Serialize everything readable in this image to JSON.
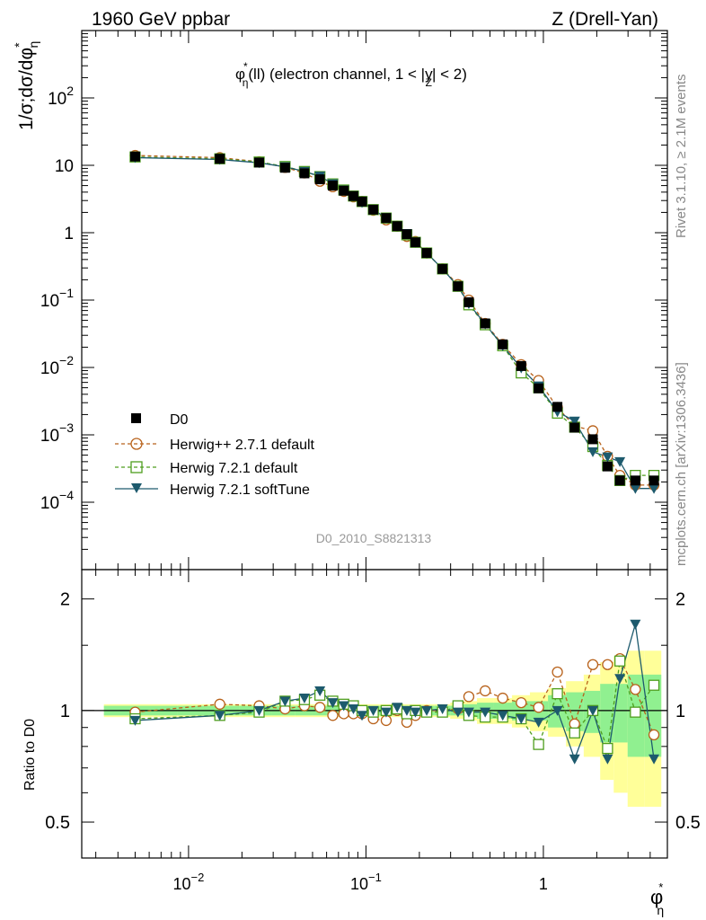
{
  "header": {
    "left": "1960 GeV ppbar",
    "right": "Z (Drell-Yan)"
  },
  "side_labels": {
    "rivet": "Rivet 3.1.10, ≥ 2.1M events",
    "mcplots": "mcplots.cern.ch [arXiv:1306.3436]"
  },
  "main_plot": {
    "title_phi": "φ",
    "title_star": "*",
    "title_eta": "η",
    "title_rest": "(ll) (electron channel, 1 < |y",
    "title_Z": "Z",
    "title_end": "| < 2)",
    "ylabel": "1/σ;dσ/dφ",
    "ylabel_star": "*",
    "ylabel_eta": "η",
    "y_ticks": [
      {
        "label": "10",
        "exp": "2"
      },
      {
        "label": "10",
        "exp": ""
      },
      {
        "label": "1",
        "exp": ""
      },
      {
        "label": "10",
        "exp": "−1"
      },
      {
        "label": "10",
        "exp": "−2"
      },
      {
        "label": "10",
        "exp": "−3"
      },
      {
        "label": "10",
        "exp": "−4"
      }
    ],
    "watermark": "D0_2010_S8821313"
  },
  "ratio_plot": {
    "ylabel": "Ratio to D0",
    "y_ticks": [
      "2",
      "1",
      "0.5"
    ]
  },
  "x_axis": {
    "label_phi": "φ",
    "label_star": "*",
    "label_eta": "η",
    "ticks": [
      {
        "label": "10",
        "exp": "−2"
      },
      {
        "label": "10",
        "exp": "−1"
      },
      {
        "label": "1",
        "exp": ""
      }
    ]
  },
  "legend": [
    {
      "label": "D0"
    },
    {
      "label": "Herwig++ 2.7.1 default"
    },
    {
      "label": "Herwig 7.2.1 default"
    },
    {
      "label": "Herwig 7.2.1 softTune"
    }
  ],
  "colors": {
    "data": "#000000",
    "herwigpp": "#b8621b",
    "herwig_default": "#4f9e1e",
    "herwig_soft": "#1d5a6d",
    "band_inner": "#90f090",
    "band_outer": "#ffff99"
  },
  "chart_data": {
    "type": "line",
    "x_scale": "log",
    "main": {
      "y_scale": "log",
      "ylim": [
        1e-05,
        1000
      ],
      "xlim": [
        0.0025,
        5
      ],
      "x": [
        0.005,
        0.015,
        0.025,
        0.035,
        0.045,
        0.055,
        0.065,
        0.075,
        0.085,
        0.095,
        0.11,
        0.13,
        0.15,
        0.17,
        0.19,
        0.22,
        0.27,
        0.33,
        0.38,
        0.47,
        0.59,
        0.75,
        0.94,
        1.2,
        1.5,
        1.9,
        2.3,
        2.7,
        3.3,
        4.2
      ],
      "series": [
        {
          "name": "D0",
          "style": "data",
          "values": [
            13.5,
            12.5,
            11.0,
            9.2,
            7.6,
            6.2,
            5.0,
            4.2,
            3.5,
            2.9,
            2.2,
            1.65,
            1.25,
            0.95,
            0.72,
            0.5,
            0.29,
            0.16,
            0.093,
            0.045,
            0.022,
            0.0105,
            0.0049,
            0.0026,
            0.00128,
            0.00086,
            0.00034,
            0.00021,
            0.00021,
            0.00021
          ]
        },
        {
          "name": "Herwig++ 2.7.1 default",
          "style": "circle",
          "values": [
            14.0,
            13.0,
            11.3,
            9.3,
            7.7,
            5.8,
            4.8,
            4.1,
            3.4,
            2.9,
            2.15,
            1.55,
            1.25,
            0.88,
            0.74,
            0.5,
            0.29,
            0.17,
            0.1,
            0.045,
            0.022,
            0.011,
            0.0064,
            0.00255,
            0.00135,
            0.00115,
            0.00048,
            0.00025,
            0.00018,
            0.00018
          ]
        },
        {
          "name": "Herwig 7.2.1 default",
          "style": "square",
          "values": [
            13.3,
            12.5,
            11.2,
            9.6,
            8.1,
            6.8,
            5.3,
            4.3,
            3.5,
            2.9,
            2.2,
            1.65,
            1.25,
            0.93,
            0.72,
            0.5,
            0.29,
            0.16,
            0.085,
            0.043,
            0.021,
            0.0083,
            0.005,
            0.0021,
            0.0013,
            0.00067,
            0.00035,
            0.00021,
            0.00025,
            0.00025
          ]
        },
        {
          "name": "Herwig 7.2.1 softTune",
          "style": "triangle",
          "values": [
            13.0,
            12.2,
            10.9,
            9.5,
            8.1,
            6.9,
            5.3,
            4.3,
            3.5,
            2.8,
            2.2,
            1.65,
            1.25,
            0.97,
            0.72,
            0.5,
            0.29,
            0.16,
            0.088,
            0.044,
            0.021,
            0.0098,
            0.0053,
            0.0022,
            0.0016,
            0.00056,
            0.00047,
            0.0004,
            0.00016,
            0.00016
          ]
        }
      ]
    },
    "ratio": {
      "y_scale": "log",
      "ylim": [
        0.4,
        2.4
      ],
      "reference": 1,
      "band_inner": [
        0.03,
        0.03,
        0.03,
        0.03,
        0.03,
        0.03,
        0.03,
        0.03,
        0.03,
        0.03,
        0.03,
        0.03,
        0.03,
        0.03,
        0.03,
        0.03,
        0.03,
        0.03,
        0.04,
        0.05,
        0.05,
        0.06,
        0.06,
        0.1,
        0.12,
        0.13,
        0.18,
        0.18,
        0.25,
        0.25
      ],
      "band_outer": [
        0.04,
        0.04,
        0.04,
        0.04,
        0.04,
        0.04,
        0.04,
        0.04,
        0.04,
        0.04,
        0.04,
        0.04,
        0.04,
        0.04,
        0.04,
        0.04,
        0.04,
        0.05,
        0.06,
        0.08,
        0.08,
        0.1,
        0.12,
        0.15,
        0.2,
        0.25,
        0.35,
        0.4,
        0.45,
        0.45
      ],
      "series": [
        {
          "name": "Herwig++ 2.7.1 default",
          "style": "circle",
          "values": [
            0.99,
            1.04,
            1.03,
            1.01,
            1.03,
            1.02,
            0.97,
            0.98,
            0.98,
            0.98,
            0.95,
            0.94,
            1.0,
            0.93,
            0.97,
            1.0,
            1.0,
            1.01,
            1.09,
            1.13,
            1.08,
            1.05,
            1.02,
            1.27,
            0.92,
            1.33,
            1.33,
            1.38,
            1.14,
            0.86
          ]
        },
        {
          "name": "Herwig 7.2.1 default",
          "style": "square",
          "values": [
            0.95,
            0.97,
            0.99,
            1.06,
            1.07,
            1.1,
            1.06,
            1.04,
            1.03,
            1.0,
            0.99,
            1.0,
            1.01,
            0.98,
            1.0,
            0.99,
            0.99,
            1.03,
            0.97,
            0.96,
            0.96,
            0.95,
            0.81,
            1.11,
            0.87,
            1.0,
            0.79,
            1.36,
            0.99,
            1.17
          ]
        },
        {
          "name": "Herwig 7.2.1 softTune",
          "style": "triangle",
          "values": [
            0.94,
            0.97,
            1.0,
            1.06,
            1.08,
            1.13,
            1.05,
            1.03,
            1.01,
            0.97,
            1.0,
            0.99,
            1.02,
            1.0,
            0.99,
            1.0,
            1.01,
            0.99,
            0.99,
            0.99,
            0.97,
            0.95,
            0.93,
            1.0,
            0.74,
            1.0,
            0.74,
            1.22,
            1.71,
            0.74
          ]
        }
      ]
    }
  }
}
